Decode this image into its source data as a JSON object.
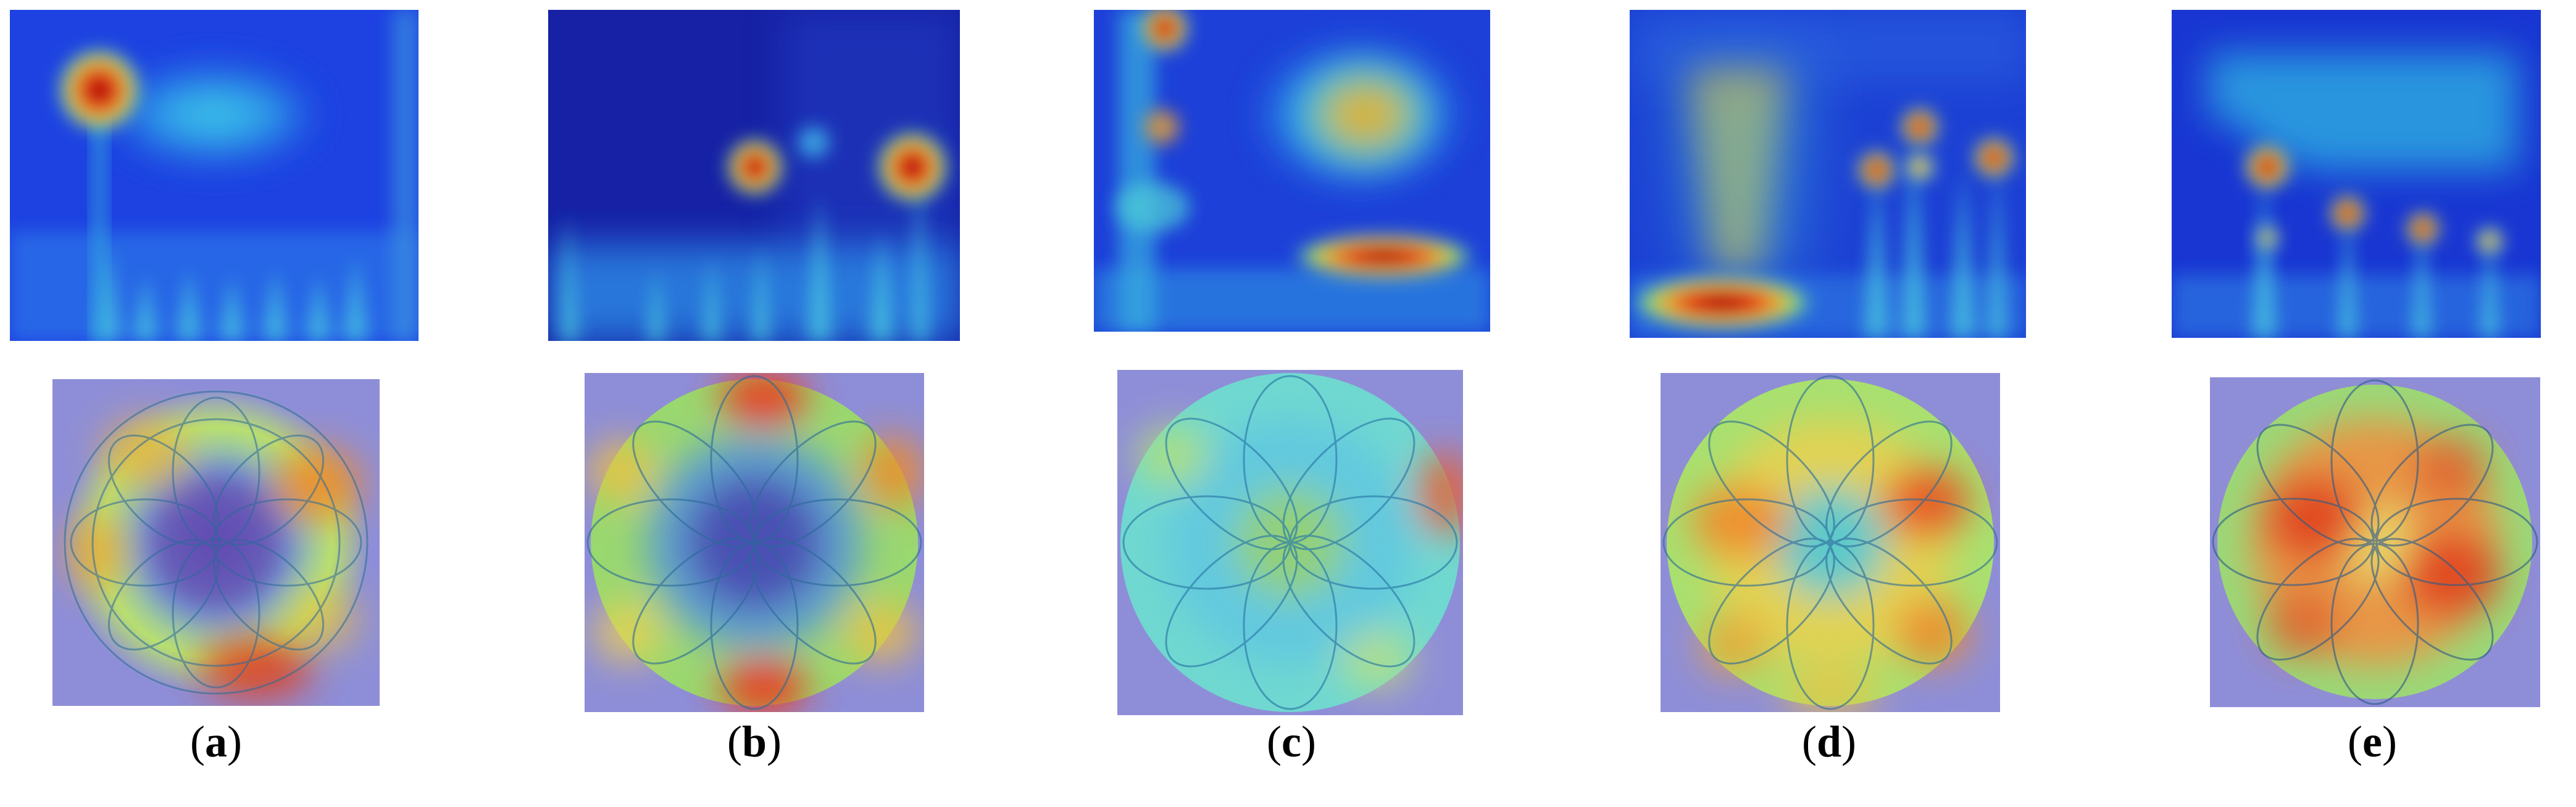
{
  "figure": {
    "panels": [
      {
        "id": "a",
        "label_open": "(",
        "letter": "a",
        "label_close": ")"
      },
      {
        "id": "b",
        "label_open": "(",
        "letter": "b",
        "label_close": ")"
      },
      {
        "id": "c",
        "label_open": "(",
        "letter": "c",
        "label_close": ")"
      },
      {
        "id": "d",
        "label_open": "(",
        "letter": "d",
        "label_close": ")"
      },
      {
        "id": "e",
        "label_open": "(",
        "letter": "e",
        "label_close": ")"
      }
    ],
    "colors": {
      "jet_dark": "#0a0a8c",
      "jet_blue": "#1f3fe0",
      "jet_cyan": "#35d5e6",
      "jet_green": "#8fe36a",
      "jet_yellow": "#f2e04a",
      "jet_orange": "#f08a2a",
      "jet_red": "#c81414",
      "background_lavender": "#8e8ed8"
    }
  }
}
